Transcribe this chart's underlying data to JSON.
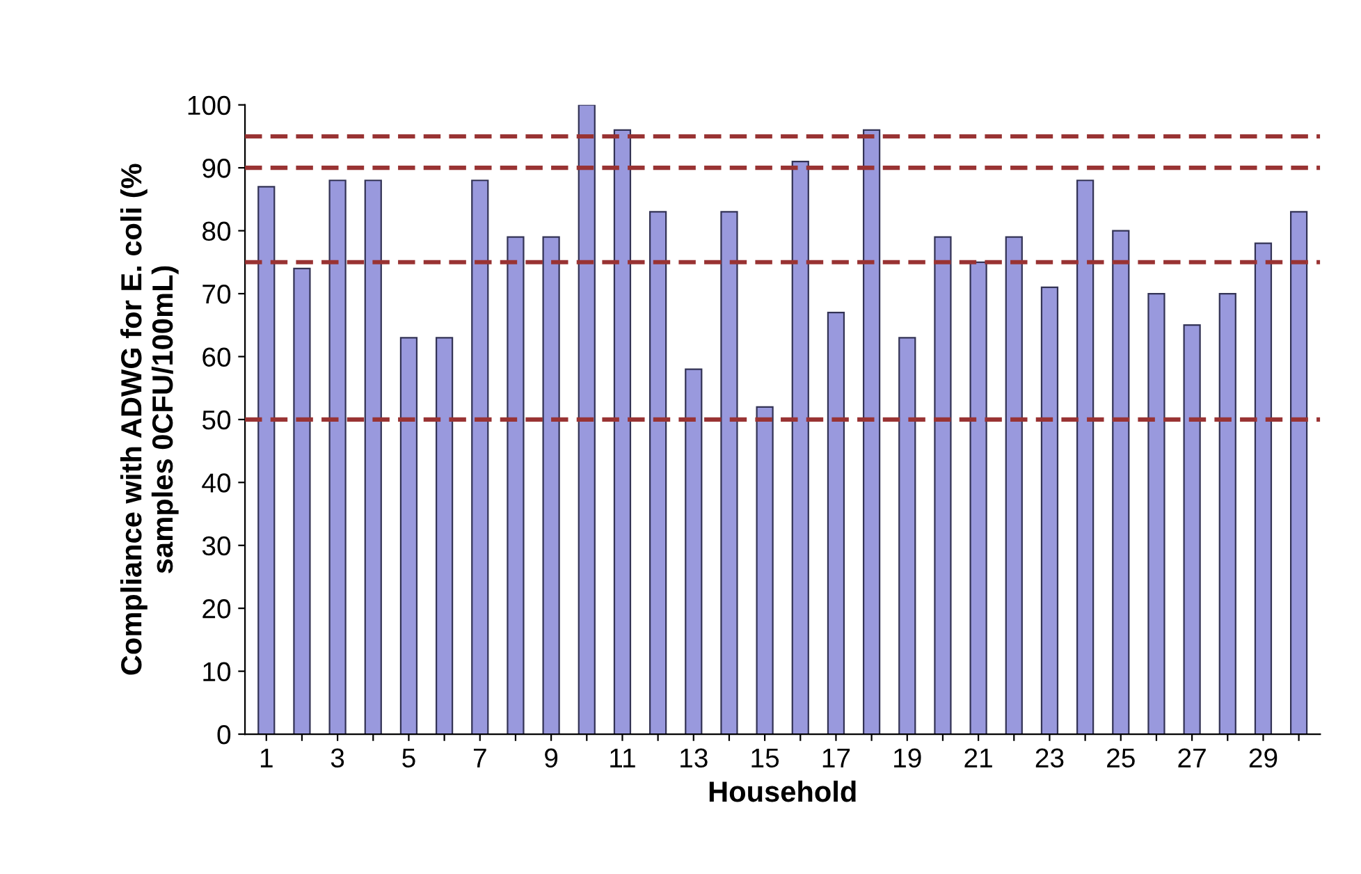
{
  "chart_data": {
    "type": "bar",
    "xlabel": "Household",
    "ylabel": "Compliance with ADWG for E. coli (%\nsamples 0CFU/100mL)",
    "categories": [
      "1",
      null,
      "3",
      null,
      "5",
      null,
      "7",
      null,
      "9",
      null,
      "11",
      null,
      "13",
      null,
      "15",
      null,
      "17",
      null,
      "19",
      null,
      "21",
      null,
      "23",
      null,
      "25",
      null,
      "27",
      null,
      "29",
      null
    ],
    "values": [
      87,
      74,
      88,
      88,
      63,
      63,
      88,
      79,
      79,
      100,
      96,
      83,
      58,
      83,
      52,
      91,
      67,
      96,
      63,
      79,
      75,
      79,
      71,
      88,
      80,
      70,
      65,
      70,
      78,
      83
    ],
    "color": "#9999dd",
    "ylim": [
      0,
      100
    ],
    "yticks": [
      0,
      10,
      20,
      30,
      40,
      50,
      60,
      70,
      80,
      90,
      100
    ],
    "ref_lines": [
      {
        "axis": "y",
        "value": 95,
        "color": "#993333",
        "line_style": "dashed"
      },
      {
        "axis": "y",
        "value": 90,
        "color": "#993333",
        "line_style": "dashed"
      },
      {
        "axis": "y",
        "value": 75,
        "color": "#993333",
        "line_style": "dashed"
      },
      {
        "axis": "y",
        "value": 50,
        "color": "#993333",
        "line_style": "dashed"
      }
    ],
    "grid": false,
    "legend": false
  }
}
